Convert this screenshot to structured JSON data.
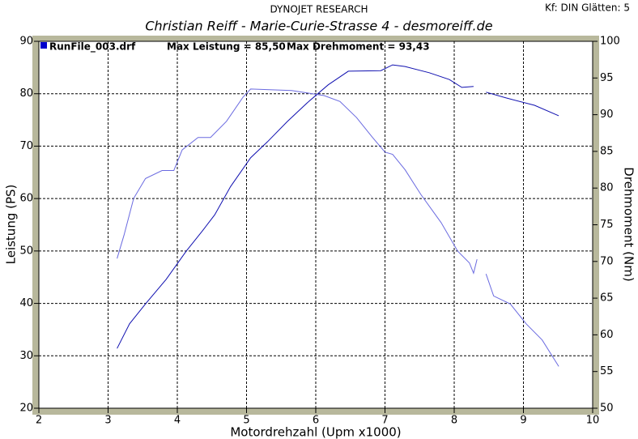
{
  "chart_data": {
    "type": "line",
    "header": "DYNOJET RESEARCH",
    "settings_text": "Kf: DIN  Glätten: 5",
    "title": "Christian Reiff - Marie-Curie-Strasse 4 - desmoreiff.de",
    "legend_text": [
      "RunFile_003.drf",
      "Max Leistung = 85,50",
      "Max Drehmoment = 93,43"
    ],
    "legend_color": "#0000cc",
    "x_label": "Motordrehzahl (Upm x1000)",
    "y_label": "Leistung (PS)",
    "y2_label": "Drehmoment (Nm)",
    "xlim": [
      2,
      10
    ],
    "xticks": [
      2,
      3,
      4,
      5,
      6,
      7,
      8,
      9,
      10
    ],
    "ylim": [
      20,
      90
    ],
    "yticks": [
      20,
      30,
      40,
      50,
      60,
      70,
      80,
      90
    ],
    "y2lim": [
      50,
      100
    ],
    "y2ticks": [
      50,
      55,
      60,
      65,
      70,
      75,
      80,
      85,
      90,
      95,
      100
    ],
    "grid": true,
    "series": [
      {
        "color": "#1010b0",
        "axis": "y",
        "x": [
          3.13,
          3.31,
          3.54,
          3.84,
          4.13,
          4.36,
          4.54,
          4.77,
          5.06,
          5.3,
          5.59,
          5.88,
          6.18,
          6.47,
          6.94,
          7.11,
          7.29,
          7.64,
          7.93,
          8.11,
          8.28,
          8.37,
          8.46,
          8.75,
          9.16,
          9.51
        ],
        "values": [
          31.4,
          36.1,
          39.9,
          44.6,
          50.0,
          53.8,
          56.9,
          62.3,
          67.8,
          70.8,
          74.7,
          78.3,
          81.7,
          84.3,
          84.4,
          85.5,
          85.2,
          84.0,
          82.7,
          81.2,
          81.4,
          null,
          80.3,
          79.2,
          77.8,
          75.8
        ]
      },
      {
        "color": "#6a6ae0",
        "axis": "y2",
        "x": [
          3.13,
          3.23,
          3.37,
          3.54,
          3.78,
          3.95,
          4.07,
          4.3,
          4.48,
          4.71,
          4.95,
          5.06,
          5.65,
          6.12,
          6.35,
          6.59,
          6.82,
          7.0,
          7.11,
          7.29,
          7.52,
          7.81,
          8.05,
          8.22,
          8.28,
          8.33,
          8.4,
          8.46,
          8.57,
          8.81,
          9.04,
          9.27,
          9.51
        ],
        "values": [
          70.4,
          73.6,
          78.6,
          81.3,
          82.4,
          82.4,
          85.2,
          86.9,
          86.9,
          89.1,
          92.4,
          93.5,
          93.3,
          92.6,
          91.8,
          89.6,
          86.9,
          84.9,
          84.6,
          82.5,
          79.1,
          75.3,
          71.4,
          69.8,
          68.4,
          70.3,
          null,
          68.3,
          65.3,
          64.2,
          61.5,
          59.3,
          55.7
        ]
      }
    ]
  }
}
